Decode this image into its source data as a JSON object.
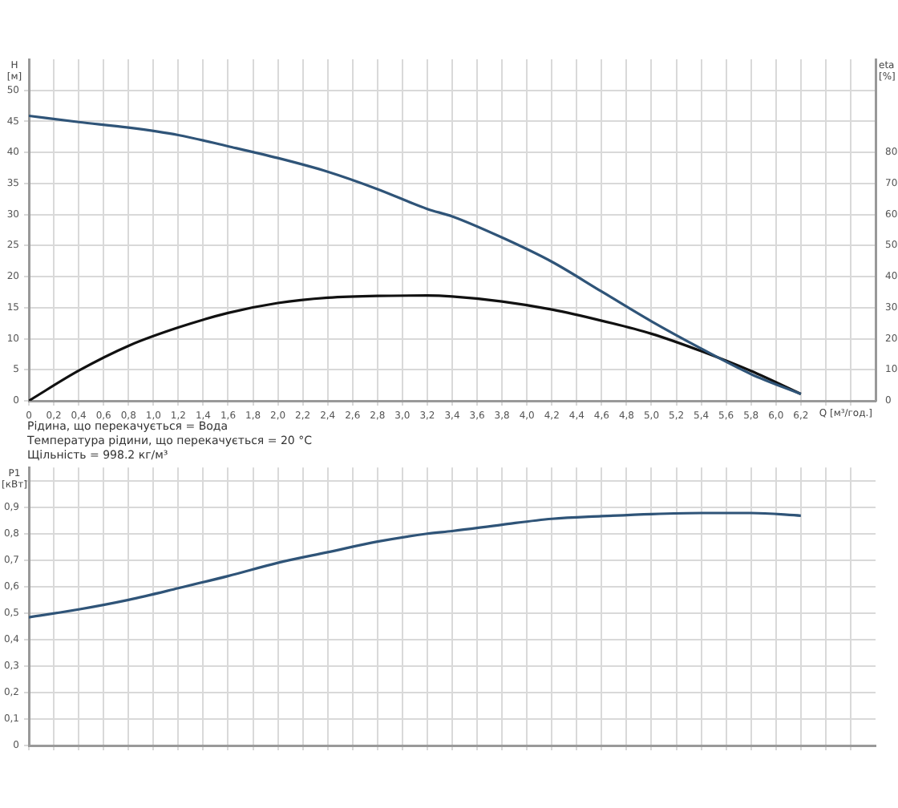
{
  "chart_data": [
    {
      "type": "line",
      "ylabel": "H [м]",
      "y2label": "eta [%]",
      "xlabel": "Q [м³/год.]",
      "annotations": [
        "Рідина, що перекачується = Вода",
        "Температура рідини, що перекачується = 20 °C",
        "Щільність = 998.2 кг/м³"
      ],
      "x": [
        0,
        0.4,
        0.8,
        1.2,
        1.6,
        2.0,
        2.4,
        2.8,
        3.2,
        3.4,
        3.8,
        4.2,
        4.6,
        5.0,
        5.4,
        5.8,
        6.2
      ],
      "series": [
        {
          "color": "#2f5478",
          "values": [
            45.9,
            44.9,
            44.0,
            42.8,
            41.0,
            39.1,
            36.9,
            34.1,
            30.9,
            29.7,
            26.3,
            22.4,
            17.6,
            12.8,
            8.4,
            4.3,
            1.1
          ]
        },
        {
          "color": "#111111",
          "axis": "y2",
          "values": [
            0,
            9.7,
            17.7,
            23.6,
            28.3,
            31.5,
            33.2,
            33.8,
            33.9,
            33.6,
            32.0,
            29.4,
            25.8,
            21.6,
            16.0,
            9.6,
            2.2
          ]
        }
      ],
      "xlim": [
        0,
        6.8
      ],
      "xticks": [
        0,
        {
          "value": 0.2,
          "label": "0,2"
        },
        {
          "value": 0.4,
          "label": "0,4"
        },
        {
          "value": 0.6,
          "label": "0,6"
        },
        {
          "value": 0.8,
          "label": "0,8"
        },
        {
          "value": 1,
          "label": "1,0"
        },
        {
          "value": 1.2,
          "label": "1,2"
        },
        {
          "value": 1.4,
          "label": "1,4"
        },
        {
          "value": 1.6,
          "label": "1,6"
        },
        {
          "value": 1.8,
          "label": "1,8"
        },
        {
          "value": 2,
          "label": "2,0"
        },
        {
          "value": 2.2,
          "label": "2,2"
        },
        {
          "value": 2.4,
          "label": "2,4"
        },
        {
          "value": 2.6,
          "label": "2,6"
        },
        {
          "value": 2.8,
          "label": "2,8"
        },
        {
          "value": 3,
          "label": "3,0"
        },
        {
          "value": 3.2,
          "label": "3,2"
        },
        {
          "value": 3.4,
          "label": "3,4"
        },
        {
          "value": 3.6,
          "label": "3,6"
        },
        {
          "value": 3.8,
          "label": "3,8"
        },
        {
          "value": 4,
          "label": "4,0"
        },
        {
          "value": 4.2,
          "label": "4,2"
        },
        {
          "value": 4.4,
          "label": "4,4"
        },
        {
          "value": 4.6,
          "label": "4,6"
        },
        {
          "value": 4.8,
          "label": "4,8"
        },
        {
          "value": 5,
          "label": "5,0"
        },
        {
          "value": 5.2,
          "label": "5,2"
        },
        {
          "value": 5.4,
          "label": "5,4"
        },
        {
          "value": 5.6,
          "label": "5,6"
        },
        {
          "value": 5.8,
          "label": "5,8"
        },
        {
          "value": 6,
          "label": "6,0"
        },
        {
          "value": 6.2,
          "label": "6,2"
        },
        {
          "value": 6.4,
          "label": null
        },
        {
          "value": 6.6,
          "label": null
        }
      ],
      "ylim": [
        0,
        55
      ],
      "yticks": [
        0,
        5,
        10,
        15,
        20,
        25,
        30,
        35,
        40,
        45,
        50
      ],
      "y2lim": [
        0,
        110
      ],
      "y2ticks": [
        0,
        10,
        20,
        30,
        40,
        50,
        60,
        70,
        80
      ],
      "grid": true,
      "marker": "none",
      "line_style": "solid"
    },
    {
      "type": "line",
      "ylabel": "P1 [кВт]",
      "x": [
        0,
        0.4,
        0.8,
        1.2,
        1.6,
        2.0,
        2.4,
        2.8,
        3.2,
        3.4,
        3.8,
        4.2,
        4.6,
        5.0,
        5.4,
        5.8,
        6.2
      ],
      "series": [
        {
          "color": "#2f5478",
          "values": [
            0.484,
            0.514,
            0.55,
            0.594,
            0.64,
            0.69,
            0.73,
            0.77,
            0.8,
            0.81,
            0.834,
            0.856,
            0.866,
            0.874,
            0.878,
            0.878,
            0.868
          ]
        }
      ],
      "xlim": [
        0,
        6.8
      ],
      "xticks": [
        0,
        0.2,
        0.4,
        0.6,
        0.8,
        1,
        1.2,
        1.4,
        1.6,
        1.8,
        2,
        2.2,
        2.4,
        2.6,
        2.8,
        3,
        3.2,
        3.4,
        3.6,
        3.8,
        4,
        4.2,
        4.4,
        4.6,
        4.8,
        5,
        5.2,
        5.4,
        5.6,
        5.8,
        6,
        6.2,
        6.4,
        6.6
      ],
      "ylim": [
        0,
        1.05
      ],
      "yticks": [
        0,
        {
          "value": 0.1,
          "label": "0,1"
        },
        {
          "value": 0.2,
          "label": "0,2"
        },
        {
          "value": 0.3,
          "label": "0,3"
        },
        {
          "value": 0.4,
          "label": "0,4"
        },
        {
          "value": 0.5,
          "label": "0,5"
        },
        {
          "value": 0.6,
          "label": "0,6"
        },
        {
          "value": 0.7,
          "label": "0,7"
        },
        {
          "value": 0.8,
          "label": "0,8"
        },
        {
          "value": 0.9,
          "label": "0,9"
        },
        {
          "value": 1,
          "label": null
        }
      ],
      "tick_labels": "y",
      "grid": true,
      "marker": "none",
      "line_style": "solid"
    }
  ]
}
